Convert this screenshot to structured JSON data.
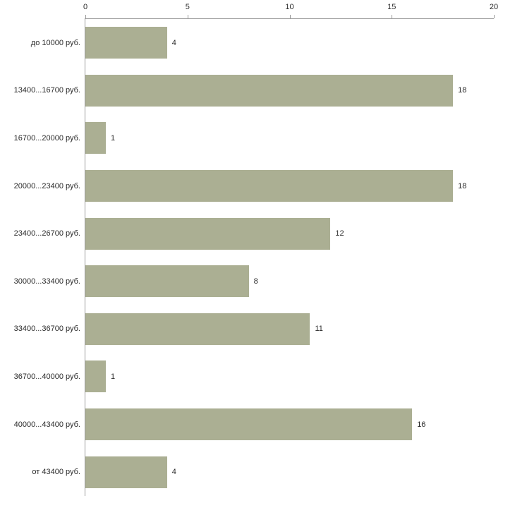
{
  "chart_data": {
    "type": "bar",
    "orientation": "horizontal",
    "title": "",
    "xlabel": "",
    "ylabel": "",
    "categories": [
      "до 10000 руб.",
      "13400...16700 руб.",
      "16700...20000 руб.",
      "20000...23400 руб.",
      "23400...26700 руб.",
      "30000...33400 руб.",
      "33400...36700 руб.",
      "36700...40000 руб.",
      "40000...43400 руб.",
      "от 43400 руб."
    ],
    "values": [
      4,
      18,
      1,
      18,
      12,
      8,
      11,
      1,
      16,
      4
    ],
    "x_ticks": [
      0,
      5,
      10,
      15,
      20
    ],
    "xlim": [
      0,
      20
    ],
    "grid": false,
    "legend": false,
    "bar_color": "#abaf93",
    "axis_color": "#9a9a9a",
    "text_color": "#2b2b2b",
    "background_color": "#ffffff"
  }
}
